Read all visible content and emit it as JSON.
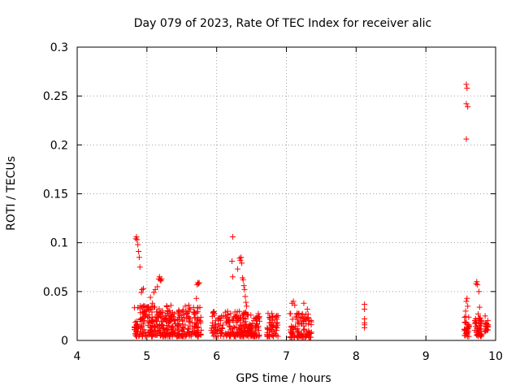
{
  "chart_data": {
    "type": "scatter",
    "title": "Day 079 of 2023, Rate Of TEC Index for receiver alic",
    "xlabel": "GPS time / hours",
    "ylabel": "ROTI / TECUs",
    "xlim": [
      4,
      10
    ],
    "ylim": [
      0,
      0.3
    ],
    "x_ticks": [
      "4",
      "5",
      "6",
      "7",
      "8",
      "9",
      "10"
    ],
    "y_ticks": [
      "0",
      "0.05",
      "0.1",
      "0.15",
      "0.2",
      "0.25",
      "0.3"
    ],
    "grid": true,
    "marker": "+",
    "series": [
      {
        "name": "ROTI",
        "color": "#ff0000",
        "points": [
          [
            4.84,
            0.104
          ],
          [
            4.85,
            0.106
          ],
          [
            4.86,
            0.103
          ],
          [
            4.87,
            0.098
          ],
          [
            4.88,
            0.091
          ],
          [
            4.89,
            0.085
          ],
          [
            4.9,
            0.075
          ],
          [
            4.93,
            0.052
          ],
          [
            4.95,
            0.053
          ],
          [
            4.92,
            0.049
          ],
          [
            5.05,
            0.044
          ],
          [
            5.1,
            0.049
          ],
          [
            5.12,
            0.052
          ],
          [
            5.15,
            0.055
          ],
          [
            5.17,
            0.063
          ],
          [
            5.18,
            0.065
          ],
          [
            5.19,
            0.062
          ],
          [
            5.2,
            0.061
          ],
          [
            5.21,
            0.063
          ],
          [
            5.08,
            0.038
          ],
          [
            5.1,
            0.034
          ],
          [
            5.55,
            0.035
          ],
          [
            5.6,
            0.036
          ],
          [
            5.72,
            0.057
          ],
          [
            5.73,
            0.059
          ],
          [
            5.74,
            0.058
          ],
          [
            5.75,
            0.059
          ],
          [
            5.71,
            0.043
          ],
          [
            6.23,
            0.106
          ],
          [
            6.22,
            0.081
          ],
          [
            6.23,
            0.065
          ],
          [
            6.3,
            0.073
          ],
          [
            6.33,
            0.084
          ],
          [
            6.34,
            0.082
          ],
          [
            6.35,
            0.085
          ],
          [
            6.36,
            0.079
          ],
          [
            6.37,
            0.064
          ],
          [
            6.38,
            0.062
          ],
          [
            6.39,
            0.056
          ],
          [
            6.4,
            0.052
          ],
          [
            6.41,
            0.045
          ],
          [
            6.42,
            0.039
          ],
          [
            6.43,
            0.035
          ],
          [
            7.08,
            0.038
          ],
          [
            7.1,
            0.04
          ],
          [
            7.12,
            0.036
          ],
          [
            7.25,
            0.038
          ],
          [
            7.3,
            0.032
          ],
          [
            8.12,
            0.037
          ],
          [
            8.12,
            0.032
          ],
          [
            8.12,
            0.022
          ],
          [
            8.12,
            0.018
          ],
          [
            8.12,
            0.016
          ],
          [
            8.12,
            0.013
          ],
          [
            9.58,
            0.262
          ],
          [
            9.59,
            0.258
          ],
          [
            9.58,
            0.242
          ],
          [
            9.6,
            0.239
          ],
          [
            9.58,
            0.206
          ],
          [
            9.58,
            0.04
          ],
          [
            9.59,
            0.043
          ],
          [
            9.6,
            0.035
          ],
          [
            9.57,
            0.03
          ],
          [
            9.72,
            0.058
          ],
          [
            9.73,
            0.06
          ],
          [
            9.74,
            0.057
          ],
          [
            9.76,
            0.05
          ],
          [
            9.77,
            0.034
          ],
          [
            9.75,
            0.027
          ],
          [
            9.85,
            0.025
          ],
          [
            9.87,
            0.017
          ],
          [
            9.86,
            0.01
          ]
        ],
        "dense_clusters": [
          {
            "x": [
              4.82,
              5.36
            ],
            "y": [
              0.004,
              0.036
            ],
            "count": 230
          },
          {
            "x": [
              5.36,
              5.78
            ],
            "y": [
              0.004,
              0.034
            ],
            "count": 150
          },
          {
            "x": [
              5.92,
              6.62
            ],
            "y": [
              0.004,
              0.03
            ],
            "count": 240
          },
          {
            "x": [
              6.72,
              6.88
            ],
            "y": [
              0.004,
              0.028
            ],
            "count": 60
          },
          {
            "x": [
              7.05,
              7.36
            ],
            "y": [
              0.003,
              0.028
            ],
            "count": 100
          },
          {
            "x": [
              9.55,
              9.62
            ],
            "y": [
              0.004,
              0.025
            ],
            "count": 30
          },
          {
            "x": [
              9.7,
              9.8
            ],
            "y": [
              0.004,
              0.024
            ],
            "count": 45
          },
          {
            "x": [
              9.84,
              9.9
            ],
            "y": [
              0.008,
              0.022
            ],
            "count": 15
          }
        ]
      }
    ]
  }
}
